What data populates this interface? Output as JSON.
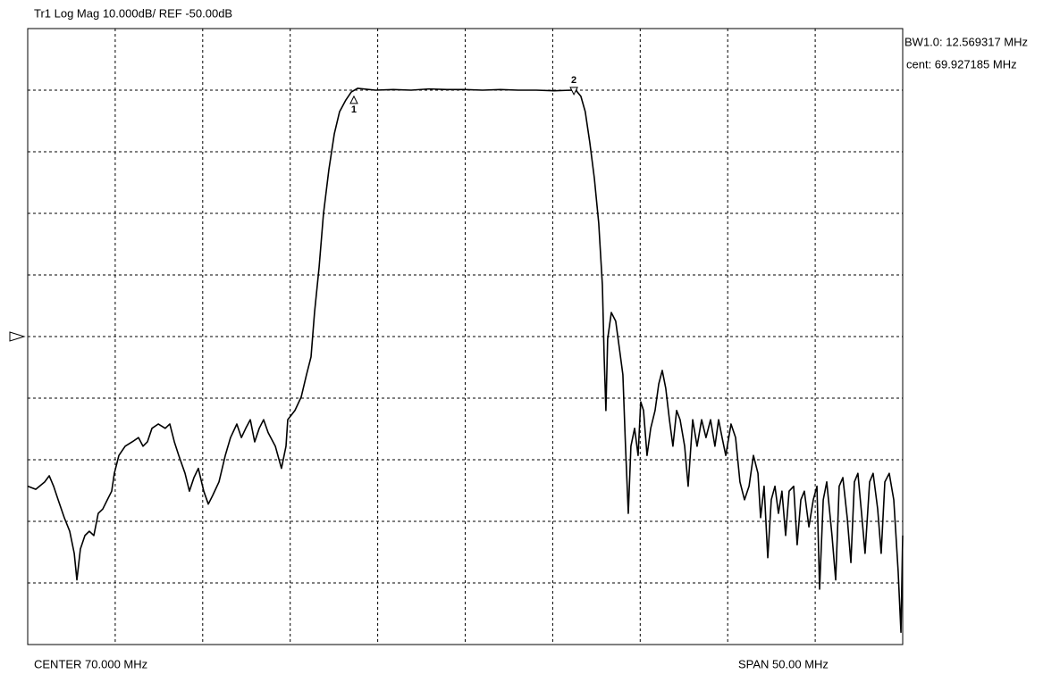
{
  "chart_data": {
    "type": "line",
    "title": "Tr1 Log Mag 10.000dB/  REF -50.00dB",
    "annotations": [
      "BW1.0: 12.569317 MHz",
      "cent: 69.927185 MHz"
    ],
    "x_label_left": "CENTER 70.000 MHz",
    "x_label_right": "SPAN 50.00 MHz",
    "xlim": [
      45,
      95
    ],
    "ylim": [
      -100,
      0
    ],
    "xticks": [
      45,
      50,
      55,
      60,
      65,
      70,
      75,
      80,
      85,
      90,
      95
    ],
    "yticks": [
      -100,
      -90,
      -80,
      -70,
      -60,
      -50,
      -40,
      -30,
      -20,
      -10,
      0
    ],
    "grid": true,
    "ref_level": -50,
    "color": "#000000",
    "x": [
      45.0,
      45.46,
      45.97,
      46.23,
      46.48,
      46.74,
      47.09,
      47.4,
      47.66,
      47.81,
      48.01,
      48.27,
      48.52,
      48.78,
      49.03,
      49.29,
      49.55,
      49.8,
      49.95,
      50.21,
      50.57,
      50.97,
      51.33,
      51.59,
      51.84,
      52.1,
      52.46,
      52.86,
      53.12,
      53.38,
      53.63,
      53.99,
      54.24,
      54.5,
      54.75,
      55.06,
      55.32,
      55.57,
      55.93,
      56.29,
      56.59,
      56.95,
      57.21,
      57.46,
      57.72,
      57.97,
      58.23,
      58.48,
      58.74,
      59.15,
      59.5,
      59.76,
      59.86,
      60.27,
      60.63,
      60.93,
      61.19,
      61.39,
      61.65,
      61.9,
      62.21,
      62.52,
      62.82,
      63.18,
      63.49,
      63.85,
      64.87,
      65.89,
      66.91,
      67.93,
      68.95,
      69.97,
      70.99,
      72.01,
      73.03,
      74.06,
      75.08,
      76.1,
      76.35,
      76.61,
      76.86,
      77.12,
      77.38,
      77.63,
      77.84,
      77.94,
      78.04,
      78.14,
      78.35,
      78.6,
      78.81,
      79.01,
      79.16,
      79.32,
      79.47,
      79.68,
      79.88,
      80.03,
      80.19,
      80.39,
      80.6,
      80.85,
      81.06,
      81.26,
      81.46,
      81.67,
      81.87,
      82.08,
      82.28,
      82.54,
      82.74,
      83.0,
      83.25,
      83.51,
      83.76,
      84.02,
      84.27,
      84.48,
      84.68,
      84.89,
      85.19,
      85.45,
      85.7,
      85.96,
      86.22,
      86.47,
      86.73,
      86.88,
      87.08,
      87.29,
      87.49,
      87.7,
      87.9,
      88.1,
      88.31,
      88.51,
      88.77,
      88.97,
      89.18,
      89.38,
      89.64,
      89.89,
      90.1,
      90.25,
      90.46,
      90.66,
      90.96,
      91.17,
      91.37,
      91.58,
      91.83,
      92.04,
      92.24,
      92.44,
      92.65,
      92.85,
      93.11,
      93.31,
      93.57,
      93.77,
      93.98,
      94.23,
      94.49,
      94.74,
      94.9,
      95.0
    ],
    "values": [
      -74.3,
      -74.8,
      -73.6,
      -72.6,
      -74.3,
      -76.5,
      -79.4,
      -81.6,
      -85.2,
      -89.5,
      -84.5,
      -82.3,
      -81.6,
      -82.3,
      -78.7,
      -78.0,
      -76.5,
      -75.1,
      -72.2,
      -69.3,
      -67.8,
      -67.1,
      -66.4,
      -67.8,
      -67.1,
      -64.9,
      -64.2,
      -64.9,
      -64.2,
      -67.1,
      -69.3,
      -72.2,
      -75.1,
      -72.9,
      -71.4,
      -75.1,
      -77.2,
      -75.8,
      -73.6,
      -69.3,
      -66.4,
      -64.2,
      -66.4,
      -64.9,
      -63.5,
      -67.1,
      -64.9,
      -63.5,
      -65.6,
      -67.8,
      -71.4,
      -67.8,
      -63.5,
      -62.0,
      -59.8,
      -56.2,
      -53.3,
      -46.1,
      -38.8,
      -30.1,
      -22.9,
      -17.1,
      -13.5,
      -11.6,
      -10.3,
      -9.7,
      -10.0,
      -9.9,
      -10.0,
      -9.8,
      -9.9,
      -9.9,
      -10.0,
      -9.9,
      -10.0,
      -10.0,
      -10.1,
      -10.0,
      -10.1,
      -11.0,
      -13.5,
      -18.5,
      -24.3,
      -31.6,
      -41.7,
      -53.3,
      -62.0,
      -50.4,
      -46.1,
      -47.5,
      -51.9,
      -56.2,
      -67.8,
      -78.7,
      -67.8,
      -64.9,
      -69.3,
      -60.6,
      -62.0,
      -69.3,
      -64.9,
      -62.0,
      -57.7,
      -55.5,
      -58.4,
      -63.5,
      -67.8,
      -62.0,
      -63.5,
      -67.8,
      -74.3,
      -63.5,
      -67.8,
      -63.5,
      -66.4,
      -63.5,
      -67.8,
      -63.5,
      -66.4,
      -69.3,
      -64.2,
      -66.4,
      -73.6,
      -76.5,
      -74.3,
      -69.3,
      -72.2,
      -79.4,
      -74.3,
      -85.9,
      -76.5,
      -74.3,
      -78.7,
      -75.1,
      -82.3,
      -75.1,
      -74.3,
      -83.8,
      -76.5,
      -75.1,
      -80.9,
      -76.5,
      -74.3,
      -91.0,
      -76.5,
      -73.6,
      -82.3,
      -89.5,
      -74.3,
      -72.9,
      -79.4,
      -86.7,
      -73.6,
      -72.2,
      -78.7,
      -85.2,
      -73.6,
      -72.2,
      -78.0,
      -85.2,
      -73.6,
      -72.2,
      -76.5,
      -88.1,
      -98.0,
      -82.3
    ],
    "markers": [
      {
        "label": "1",
        "x": 63.64,
        "value": -11
      },
      {
        "label": "2",
        "x": 76.21,
        "value": -11
      }
    ]
  }
}
